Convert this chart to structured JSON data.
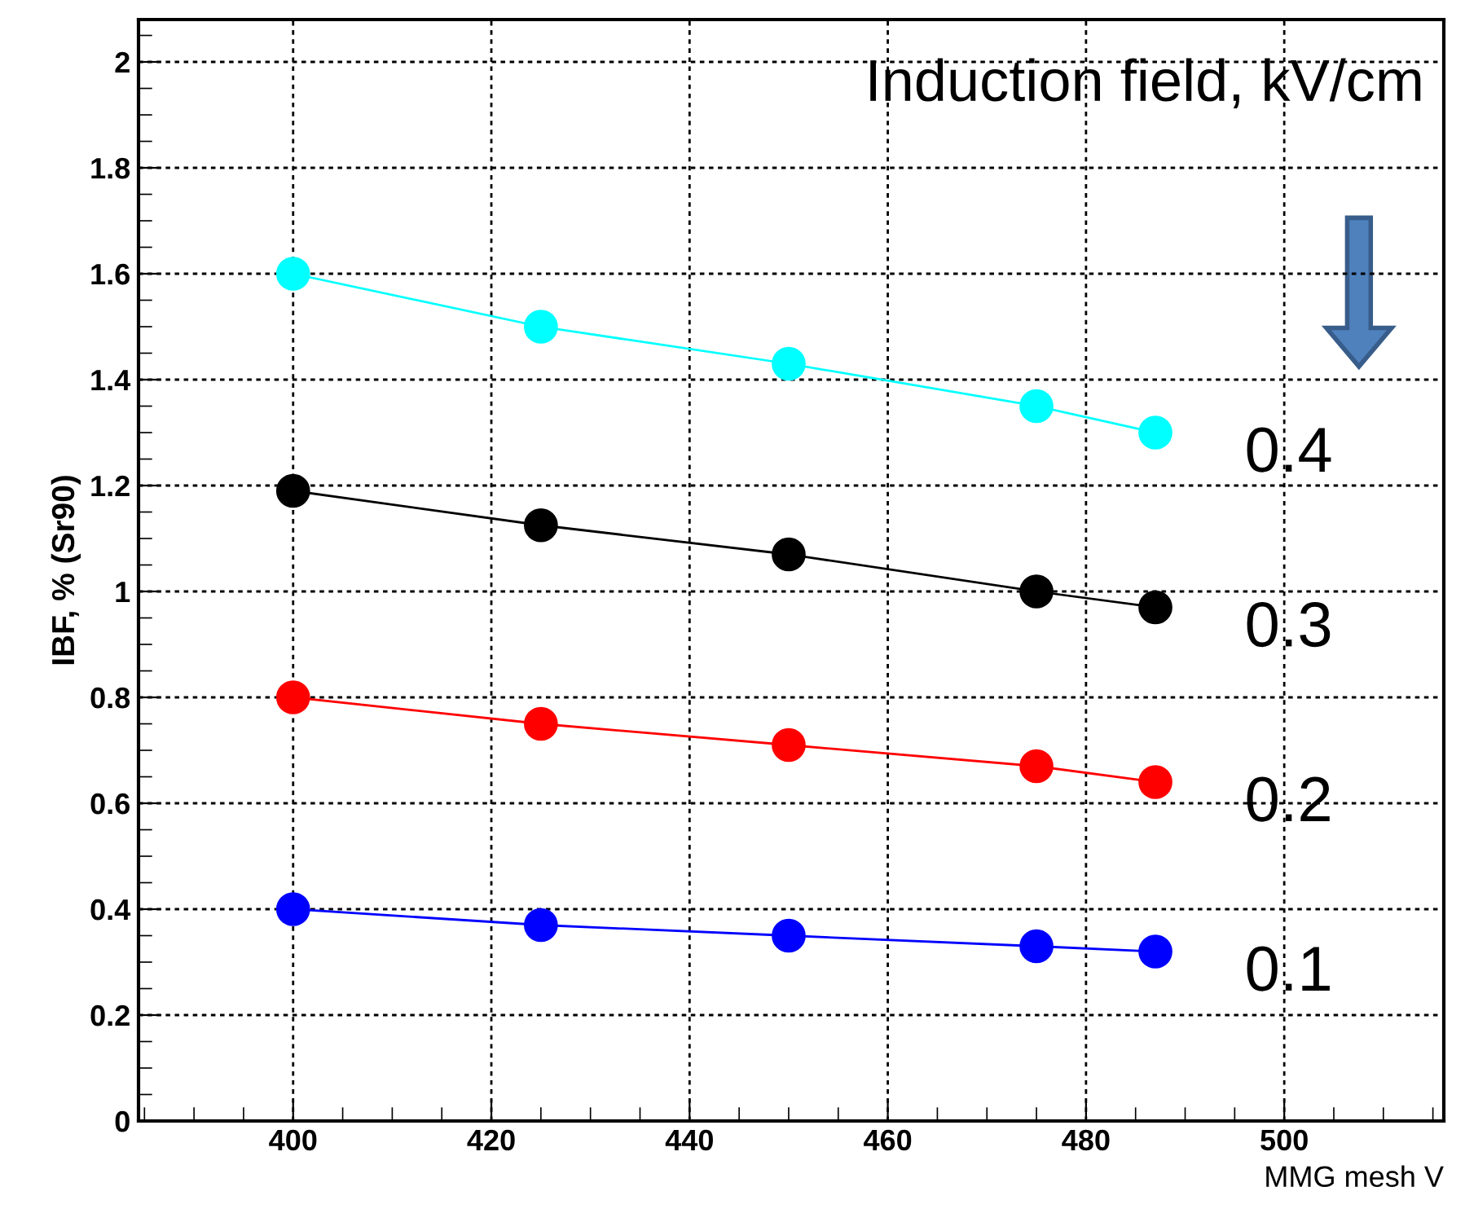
{
  "chart_data": {
    "type": "line",
    "xlabel": "MMG mesh V",
    "ylabel": "IBF, % (Sr90)",
    "legend_title": "Induction field, kV/cm",
    "x": [
      400,
      425,
      450,
      475,
      487
    ],
    "series": [
      {
        "name": "0.4",
        "color": "#00ffff",
        "values": [
          1.6,
          1.5,
          1.43,
          1.35,
          1.3
        ]
      },
      {
        "name": "0.3",
        "color": "#000000",
        "values": [
          1.19,
          1.125,
          1.07,
          1.0,
          0.97
        ]
      },
      {
        "name": "0.2",
        "color": "#ff0000",
        "values": [
          0.8,
          0.75,
          0.71,
          0.67,
          0.64
        ]
      },
      {
        "name": "0.1",
        "color": "#0000ff",
        "values": [
          0.4,
          0.37,
          0.35,
          0.33,
          0.32
        ]
      }
    ],
    "xlim": [
      384.4,
      516.1
    ],
    "ylim": [
      0,
      2.08
    ],
    "xticks": [
      400,
      420,
      440,
      460,
      480,
      500
    ],
    "yticks": [
      0,
      0.2,
      0.4,
      0.6,
      0.8,
      1,
      1.2,
      1.4,
      1.6,
      1.8,
      2
    ],
    "grid": true,
    "marker": "circle",
    "line_style": "solid"
  }
}
